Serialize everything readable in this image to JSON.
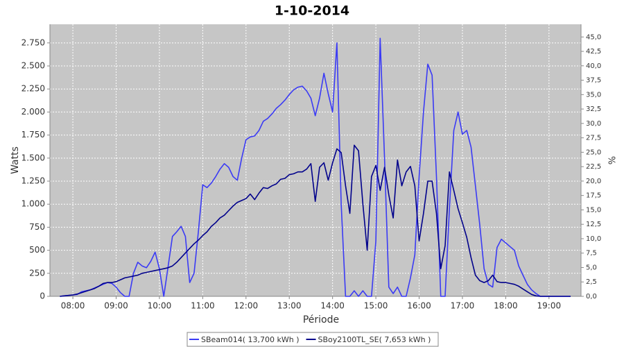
{
  "chart_data": {
    "type": "line",
    "title": "1-10-2014",
    "x_label": "Période",
    "y_label": "Watts",
    "y2_label": "%",
    "x": [
      7.7,
      7.8,
      7.9,
      8.0,
      8.1,
      8.2,
      8.3,
      8.4,
      8.5,
      8.6,
      8.7,
      8.8,
      8.9,
      9.0,
      9.1,
      9.2,
      9.3,
      9.4,
      9.5,
      9.6,
      9.7,
      9.8,
      9.9,
      10.0,
      10.1,
      10.2,
      10.3,
      10.4,
      10.5,
      10.6,
      10.7,
      10.8,
      10.9,
      11.0,
      11.1,
      11.2,
      11.3,
      11.4,
      11.5,
      11.6,
      11.7,
      11.8,
      11.9,
      12.0,
      12.1,
      12.2,
      12.3,
      12.4,
      12.5,
      12.6,
      12.7,
      12.8,
      12.9,
      13.0,
      13.1,
      13.2,
      13.3,
      13.4,
      13.5,
      13.6,
      13.7,
      13.8,
      13.9,
      14.0,
      14.1,
      14.2,
      14.3,
      14.4,
      14.5,
      14.6,
      14.7,
      14.8,
      14.9,
      15.0,
      15.1,
      15.2,
      15.3,
      15.4,
      15.5,
      15.6,
      15.7,
      15.8,
      15.9,
      16.0,
      16.1,
      16.2,
      16.3,
      16.4,
      16.5,
      16.6,
      16.7,
      16.8,
      16.9,
      17.0,
      17.1,
      17.2,
      17.3,
      17.4,
      17.5,
      17.6,
      17.7,
      17.8,
      17.9,
      18.0,
      18.1,
      18.2,
      18.3,
      18.4,
      18.5,
      18.6,
      18.7,
      18.8,
      18.9,
      19.0,
      19.1,
      19.2,
      19.3,
      19.4,
      19.5
    ],
    "series": [
      {
        "name": "SBeam014( 13,700 kWh )",
        "color": "#3a3af5",
        "values": [
          0,
          5,
          10,
          15,
          20,
          50,
          60,
          70,
          90,
          110,
          130,
          150,
          140,
          100,
          40,
          0,
          0,
          250,
          370,
          330,
          310,
          380,
          480,
          300,
          0,
          320,
          650,
          700,
          760,
          650,
          150,
          250,
          700,
          1210,
          1180,
          1230,
          1300,
          1380,
          1440,
          1400,
          1300,
          1260,
          1500,
          1700,
          1730,
          1740,
          1800,
          1900,
          1930,
          1980,
          2040,
          2080,
          2130,
          2190,
          2240,
          2270,
          2280,
          2230,
          2150,
          1960,
          2150,
          2420,
          2200,
          2000,
          2750,
          1000,
          0,
          0,
          60,
          0,
          60,
          0,
          0,
          600,
          2800,
          1500,
          100,
          30,
          100,
          0,
          0,
          200,
          450,
          1300,
          2000,
          2520,
          2400,
          1300,
          0,
          0,
          950,
          1800,
          2000,
          1760,
          1800,
          1620,
          1200,
          780,
          300,
          130,
          100,
          530,
          620,
          580,
          540,
          500,
          330,
          230,
          130,
          70,
          30,
          0,
          0,
          0,
          0,
          0,
          0,
          0,
          0
        ]
      },
      {
        "name": "SBoy2100TL_SE( 7,653 kWh )",
        "color": "#00008b",
        "values": [
          0,
          5,
          10,
          15,
          25,
          40,
          55,
          70,
          85,
          110,
          140,
          150,
          150,
          160,
          180,
          200,
          210,
          220,
          230,
          250,
          260,
          270,
          280,
          290,
          300,
          310,
          330,
          370,
          420,
          470,
          520,
          570,
          610,
          660,
          700,
          760,
          800,
          850,
          880,
          930,
          980,
          1020,
          1040,
          1060,
          1110,
          1050,
          1120,
          1180,
          1170,
          1200,
          1220,
          1270,
          1280,
          1320,
          1330,
          1350,
          1350,
          1380,
          1440,
          1030,
          1400,
          1450,
          1260,
          1450,
          1600,
          1560,
          1200,
          900,
          1640,
          1580,
          1000,
          500,
          1300,
          1420,
          1150,
          1400,
          1100,
          850,
          1480,
          1200,
          1350,
          1410,
          1200,
          600,
          900,
          1250,
          1250,
          900,
          300,
          550,
          1350,
          1150,
          950,
          800,
          640,
          420,
          230,
          170,
          150,
          170,
          230,
          160,
          150,
          150,
          140,
          130,
          110,
          80,
          50,
          20,
          5,
          0,
          0,
          0,
          0,
          0,
          0,
          0,
          0
        ]
      }
    ],
    "xlim": [
      7.47,
      19.74
    ],
    "xticks": [
      {
        "value": 8,
        "label": "08:00"
      },
      {
        "value": 9,
        "label": "09:00"
      },
      {
        "value": 10,
        "label": "10:00"
      },
      {
        "value": 11,
        "label": "11:00"
      },
      {
        "value": 12,
        "label": "12:00"
      },
      {
        "value": 13,
        "label": "13:00"
      },
      {
        "value": 14,
        "label": "14:00"
      },
      {
        "value": 15,
        "label": "15:00"
      },
      {
        "value": 16,
        "label": "16:00"
      },
      {
        "value": 17,
        "label": "17:00"
      },
      {
        "value": 18,
        "label": "18:00"
      },
      {
        "value": 19,
        "label": "19:00"
      }
    ],
    "ylim": [
      0,
      2952
    ],
    "yticks": [
      0,
      250,
      500,
      750,
      {
        "value": 1000,
        "label": "1.000"
      },
      {
        "value": 1250,
        "label": "1.250"
      },
      {
        "value": 1500,
        "label": "1.500"
      },
      {
        "value": 1750,
        "label": "1.750"
      },
      {
        "value": 2000,
        "label": "2.000"
      },
      {
        "value": 2250,
        "label": "2.250"
      },
      {
        "value": 2500,
        "label": "2.500"
      },
      {
        "value": 2750,
        "label": "2.750"
      }
    ],
    "y2lim": [
      0,
      47.2
    ],
    "y2ticks": [
      {
        "value": 0,
        "label": "0,0"
      },
      {
        "value": 2.5,
        "label": "2,5"
      },
      {
        "value": 5,
        "label": "5,0"
      },
      {
        "value": 7.5,
        "label": "7,5"
      },
      {
        "value": 10,
        "label": "10,0"
      },
      {
        "value": 12.5,
        "label": "12,5"
      },
      {
        "value": 15,
        "label": "15,0"
      },
      {
        "value": 17.5,
        "label": "17,5"
      },
      {
        "value": 20,
        "label": "20,0"
      },
      {
        "value": 22.5,
        "label": "22,5"
      },
      {
        "value": 25,
        "label": "25,0"
      },
      {
        "value": 27.5,
        "label": "27,5"
      },
      {
        "value": 30,
        "label": "30,0"
      },
      {
        "value": 32.5,
        "label": "32,5"
      },
      {
        "value": 35,
        "label": "35,0"
      },
      {
        "value": 37.5,
        "label": "37,5"
      },
      {
        "value": 40,
        "label": "40,0"
      },
      {
        "value": 42.5,
        "label": "42,5"
      },
      {
        "value": 45,
        "label": "45,0"
      }
    ],
    "grid": true,
    "legend": "bottom"
  }
}
